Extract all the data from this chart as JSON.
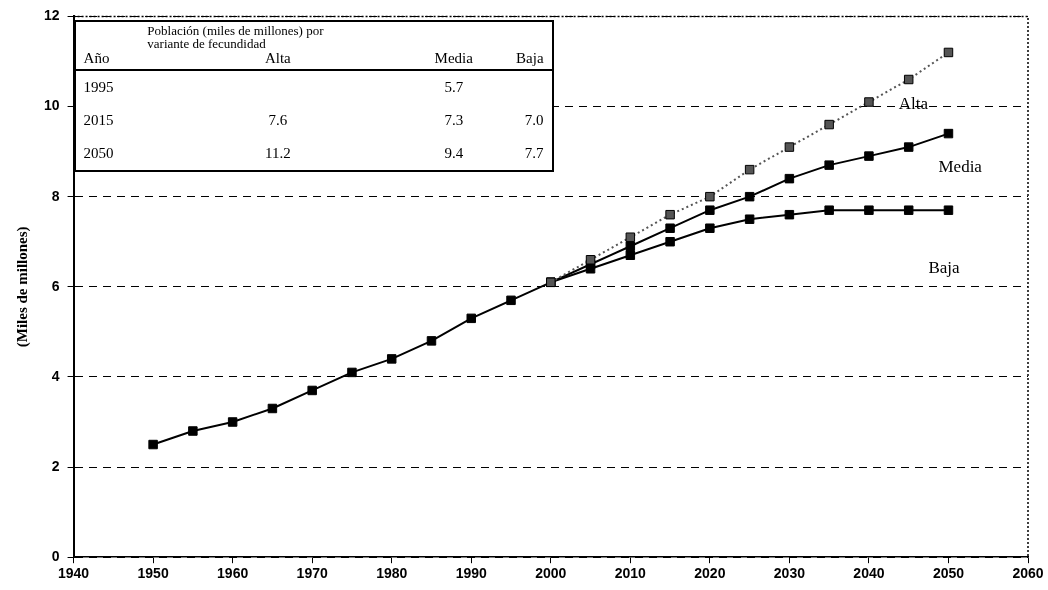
{
  "chart_data": {
    "type": "line",
    "ylabel": "(Miles de millones)",
    "xlim": [
      1940,
      2060
    ],
    "xticks": [
      1940,
      1950,
      1960,
      1970,
      1980,
      1990,
      2000,
      2010,
      2020,
      2030,
      2040,
      2050,
      2060
    ],
    "ylim": [
      0,
      12
    ],
    "yticks": [
      0,
      2,
      4,
      6,
      8,
      10,
      12
    ],
    "grid": "y",
    "legend": false,
    "marker": "square",
    "annotations": [
      "Población (miles de millones) por variante de fecundidad",
      "Año",
      "Alta",
      "Media",
      "Baja",
      "1995",
      "5.7",
      "2015",
      "7.6",
      "7.3",
      "7.0",
      "2050",
      "11.2",
      "9.4",
      "7.7"
    ],
    "series": [
      {
        "name": "Alta",
        "color": "#555555",
        "line_style": "dotted",
        "x": [
          2000,
          2005,
          2010,
          2015,
          2020,
          2025,
          2030,
          2035,
          2040,
          2045,
          2050
        ],
        "values": [
          6.1,
          6.6,
          7.1,
          7.6,
          8.0,
          8.6,
          9.1,
          9.6,
          10.1,
          10.6,
          11.2
        ]
      },
      {
        "name": "Media",
        "color": "#000000",
        "line_style": "solid",
        "x": [
          1950,
          1955,
          1960,
          1965,
          1970,
          1975,
          1980,
          1985,
          1990,
          1995,
          2000,
          2005,
          2010,
          2015,
          2020,
          2025,
          2030,
          2035,
          2040,
          2045,
          2050
        ],
        "values": [
          2.5,
          2.8,
          3.0,
          3.3,
          3.7,
          4.1,
          4.4,
          4.8,
          5.3,
          5.7,
          6.1,
          6.5,
          6.9,
          7.3,
          7.7,
          8.0,
          8.4,
          8.7,
          8.9,
          9.1,
          9.4
        ]
      },
      {
        "name": "Baja",
        "color": "#000000",
        "line_style": "solid",
        "x": [
          2000,
          2005,
          2010,
          2015,
          2020,
          2025,
          2030,
          2035,
          2040,
          2045,
          2050
        ],
        "values": [
          6.1,
          6.4,
          6.7,
          7.0,
          7.3,
          7.5,
          7.6,
          7.7,
          7.7,
          7.7,
          7.7
        ]
      }
    ]
  }
}
